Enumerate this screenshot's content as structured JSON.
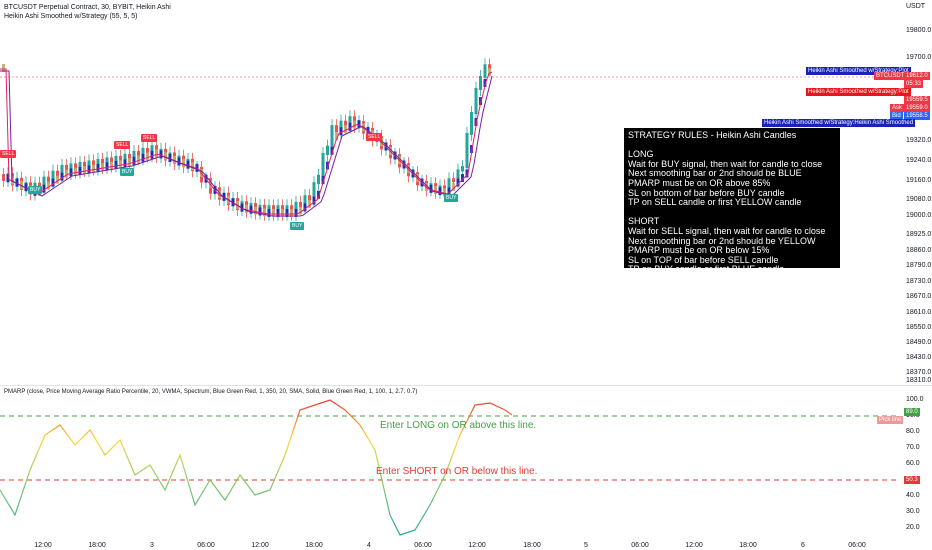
{
  "header": {
    "symbol_line": "BTCUSDT Perpetual Contract, 30, BYBIT, Heikin Ashi",
    "indicator_line": "Heikin Ashi Smoothed w/Strategy (55, 5, 5)"
  },
  "price_axis": {
    "currency": "USDT",
    "labels": [
      "19800.0",
      "19700.0",
      "19320.0",
      "19240.0",
      "19160.0",
      "19080.0",
      "19000.0",
      "18925.0",
      "18860.0",
      "18790.0",
      "18730.0",
      "18670.0",
      "18610.0",
      "18550.0",
      "18490.0",
      "18430.0",
      "18370.0",
      "18310.0"
    ]
  },
  "price_tags": {
    "plot1": "Heikin Ashi Smoothed w/Strategy:Plot",
    "btc_label": "BTCUSDT",
    "btc_price": "19612.0",
    "btc_timer": "05:33",
    "plot2": "Heikin Ashi Smoothed w/Strategy:Plot",
    "last_price": "19559.5",
    "ask_label": "Ask",
    "ask_price": "19559.0",
    "bid_label": "Bid",
    "bid_price": "19558.5",
    "plot3": "Heikin Ashi Smoothed w/Strategy:Heikin Ashi Smoothed"
  },
  "strategy_rules": {
    "title": "STRATEGY RULES - Heikin Ashi Candles",
    "long_heading": "LONG",
    "long_rules": [
      "Wait for BUY signal, then wait for candle to close",
      "Next smoothing bar or 2nd should be BLUE",
      "PMARP must be on OR above 85%",
      "SL on bottom of bar before BUY candle",
      "TP on SELL candle or first YELLOW candle"
    ],
    "short_heading": "SHORT",
    "short_rules": [
      "Wait for SELL signal, then wait for candle to close",
      "Next smoothing bar or 2nd should be YELLOW",
      "PMARP must be on OR below 15%",
      "SL on TOP of bar before SELL candle",
      "TP on BUY candle or first BLUE candle"
    ]
  },
  "signals": {
    "sell": "SELL",
    "buy": "BUY"
  },
  "pmarp": {
    "title": "PMARP (close, Price Moving Average Ratio Percentile, 20, VWMA, Spectrum, Blue Green Red, 1, 350, 20, SMA, Solid, Blue Green Red, 1, 100, 1, 2.7, 0.7)",
    "axis_labels": [
      "100.0",
      "90.0",
      "80.0",
      "70.0",
      "60.0",
      "50.0",
      "40.0",
      "30.0",
      "20.0"
    ],
    "upper_value": "89.0",
    "pick_line_label": "Pick line",
    "lower_value": "50.3",
    "long_annotation": "Enter LONG on OR above this line.",
    "short_annotation": "Enter SHORT on OR below this line.",
    "colors": {
      "long": "#43a047",
      "short": "#e53935"
    }
  },
  "time_axis": [
    "12:00",
    "18:00",
    "3",
    "06:00",
    "12:00",
    "18:00",
    "4",
    "06:00",
    "12:00",
    "18:00",
    "5",
    "06:00",
    "12:00",
    "18:00",
    "6",
    "06:00"
  ]
}
